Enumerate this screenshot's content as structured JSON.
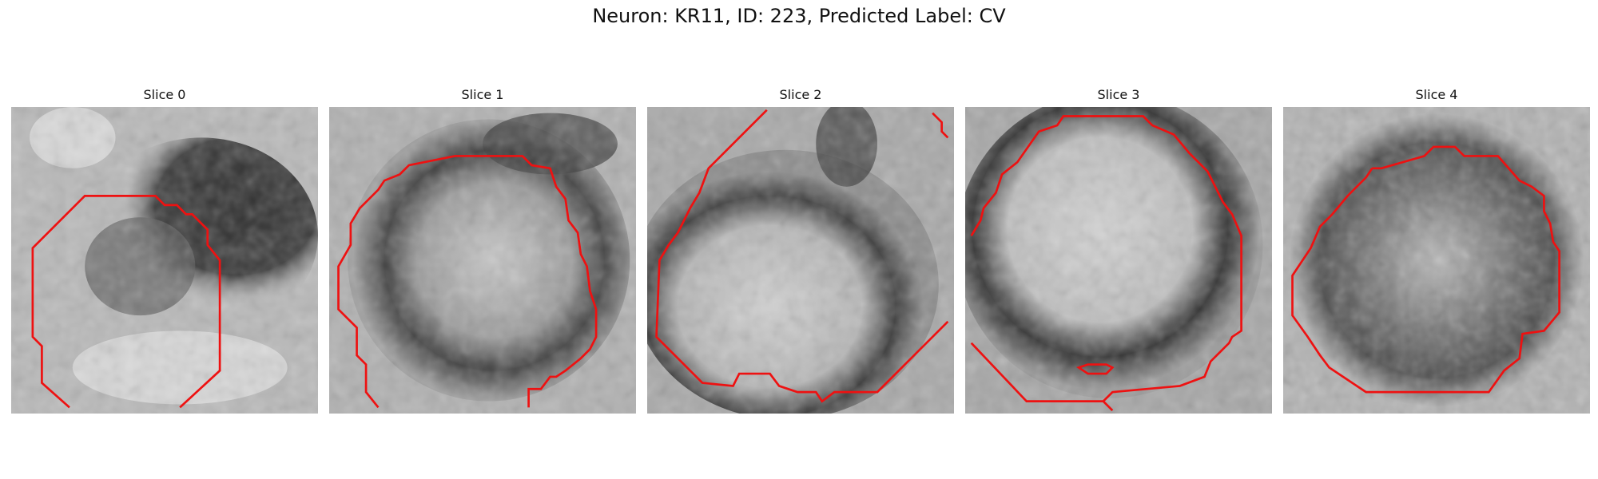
{
  "figure": {
    "title": "Neuron: KR11, ID: 223, Predicted Label: CV"
  },
  "panels": [
    {
      "title": "Slice 0"
    },
    {
      "title": "Slice 1"
    },
    {
      "title": "Slice 2"
    },
    {
      "title": "Slice 3"
    },
    {
      "title": "Slice 4"
    }
  ],
  "contour_color": "#ee1111"
}
